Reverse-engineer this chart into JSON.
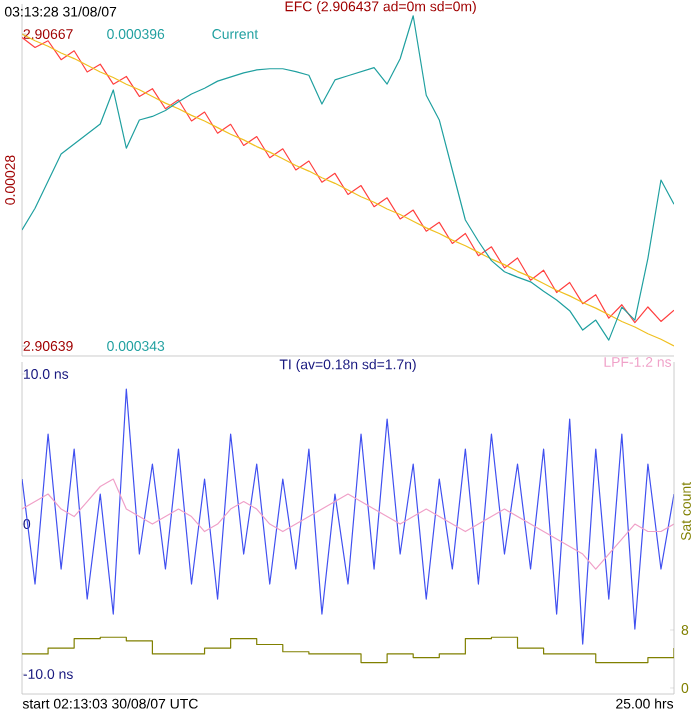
{
  "chart_data": [
    {
      "type": "line",
      "title": "EFC (2.906437 ad=0m sd=0m)",
      "ylabel": "0.00028",
      "annotations": [
        "03:13:28 31/08/07"
      ],
      "categories": [
        null,
        null,
        null,
        null,
        null,
        null,
        null,
        null,
        null,
        null,
        null,
        null,
        null,
        null,
        null,
        null,
        null,
        null,
        null,
        null,
        null,
        null,
        null,
        null,
        null,
        null,
        null,
        null,
        null,
        null,
        null,
        null,
        null,
        null,
        null,
        null,
        null,
        null,
        null,
        null,
        null,
        null,
        null,
        null,
        null,
        null,
        null,
        null,
        null,
        null,
        null
      ],
      "ylim": [
        2.906381,
        2.906697
      ],
      "yticks": [
        2.90639,
        2.90667
      ],
      "y2lim": [
        0.0003413,
        0.0004011
      ],
      "y2ticks": [
        0.000343,
        0.000396
      ],
      "series": [
        {
          "color": "#ff4040",
          "values": [
            2.906667,
            2.906658,
            2.906664,
            2.906647,
            2.906655,
            2.906636,
            2.906643,
            2.906625,
            2.906632,
            2.906614,
            2.906621,
            2.906603,
            2.906611,
            2.906592,
            2.9066,
            2.906581,
            2.906589,
            2.90657,
            2.906578,
            2.906559,
            2.906567,
            2.906548,
            2.906556,
            2.906537,
            2.906545,
            2.906526,
            2.906534,
            2.906515,
            2.906523,
            2.906504,
            2.906512,
            2.906493,
            2.906501,
            2.906482,
            2.906491,
            2.906471,
            2.906479,
            2.90646,
            2.906469,
            2.906449,
            2.906458,
            2.906438,
            2.906447,
            2.906428,
            2.906436,
            2.906415,
            2.906427,
            2.906411,
            2.906425,
            2.906412,
            2.906422
          ]
        },
        {
          "color": "#f0c020",
          "values": [
            2.90667,
            2.906664,
            2.906659,
            2.906653,
            2.906648,
            2.906642,
            2.906636,
            2.906631,
            2.906625,
            2.90662,
            2.906614,
            2.906608,
            2.906603,
            2.906597,
            2.906592,
            2.906586,
            2.90658,
            2.906575,
            2.906569,
            2.906564,
            2.906558,
            2.906552,
            2.906547,
            2.906541,
            2.906536,
            2.90653,
            2.906524,
            2.906519,
            2.906513,
            2.906508,
            2.906502,
            2.906496,
            2.906491,
            2.906485,
            2.90648,
            2.906474,
            2.906468,
            2.906463,
            2.906457,
            2.906452,
            2.906446,
            2.90644,
            2.906435,
            2.906429,
            2.906424,
            2.906418,
            2.906412,
            2.906407,
            2.906401,
            2.906396,
            2.90639
          ]
        },
        {
          "name": "Current",
          "axis": "y2",
          "color": "#20a0a0",
          "values": [
            0.0003627,
            0.0003664,
            0.000371,
            0.0003756,
            0.0003773,
            0.000379,
            0.0003807,
            0.0003865,
            0.0003766,
            0.0003814,
            0.000382,
            0.000383,
            0.0003845,
            0.0003858,
            0.0003868,
            0.000388,
            0.0003887,
            0.0003894,
            0.0003899,
            0.0003901,
            0.0003901,
            0.0003896,
            0.000389,
            0.0003841,
            0.0003882,
            0.0003889,
            0.0003896,
            0.0003903,
            0.0003875,
            0.0003918,
            0.0003991,
            0.0003856,
            0.0003814,
            0.0003729,
            0.0003644,
            0.0003608,
            0.0003575,
            0.0003556,
            0.0003547,
            0.0003539,
            0.0003523,
            0.0003508,
            0.000349,
            0.0003457,
            0.0003474,
            0.000344,
            0.0003496,
            0.0003474,
            0.0003579,
            0.0003712,
            0.0003671
          ]
        }
      ]
    },
    {
      "type": "line",
      "title": "TI (av=0.18n sd=1.7n)",
      "y2label": "Sat count",
      "annotations": [
        "start 02:13:03 30/08/07 UTC",
        "25.00 hrs"
      ],
      "categories": [
        null,
        null,
        null,
        null,
        null,
        null,
        null,
        null,
        null,
        null,
        null,
        null,
        null,
        null,
        null,
        null,
        null,
        null,
        null,
        null,
        null,
        null,
        null,
        null,
        null,
        null,
        null,
        null,
        null,
        null,
        null,
        null,
        null,
        null,
        null,
        null,
        null,
        null,
        null,
        null,
        null,
        null,
        null,
        null,
        null,
        null,
        null,
        null,
        null,
        null,
        null
      ],
      "ylim": [
        -11.33,
        10.8
      ],
      "yticks": [
        {
          "value": 10,
          "label": "10.0 ns"
        },
        0,
        {
          "value": -10,
          "label": "-10.0 ns"
        }
      ],
      "y2lim": [
        -0.83,
        44.97
      ],
      "y2ticks": [
        8,
        0
      ],
      "series": [
        {
          "color": "#4050f0",
          "values": [
            3,
            -4,
            6,
            -3,
            5,
            -5,
            2,
            -6,
            9,
            -2,
            4,
            -3,
            5,
            -4,
            3,
            -5,
            6,
            -2,
            4,
            -4,
            3,
            -3,
            5,
            -6,
            2,
            -4,
            6,
            -3,
            7,
            -2,
            4,
            -5,
            3,
            -3,
            5,
            -4,
            6,
            -2,
            4,
            -3,
            5,
            -6,
            7,
            -8,
            5,
            -5,
            6,
            -7,
            4,
            -3,
            2
          ]
        },
        {
          "name": "LPF-1.2 ns",
          "color": "#f0a0c8",
          "values": [
            1,
            1.5,
            2,
            1,
            0.5,
            1.5,
            2.5,
            3,
            1,
            0.5,
            0,
            0.5,
            1,
            0.5,
            -0.5,
            0,
            1,
            1.5,
            1,
            0,
            -0.5,
            0,
            0.5,
            1,
            1.5,
            2,
            1.5,
            1,
            0.5,
            0,
            0.5,
            1,
            0.5,
            0,
            -0.5,
            0,
            0.5,
            1,
            0.5,
            0,
            -0.5,
            -1,
            -1.5,
            -2,
            -3,
            -2,
            -1,
            0,
            -0.5,
            -0.5,
            0
          ]
        },
        {
          "type": "step",
          "axis": "y2",
          "color": "#808000",
          "values": [
            4.7,
            4.7,
            5.5,
            5.5,
            6.8,
            6.8,
            7,
            7,
            6.5,
            6.5,
            4.7,
            4.7,
            4.7,
            4.7,
            5.5,
            5.5,
            6.8,
            6.8,
            6,
            6,
            5,
            5,
            4.7,
            4.7,
            4.7,
            4.7,
            3.5,
            3.5,
            4.7,
            4.7,
            4.2,
            4.2,
            4.7,
            4.7,
            6.8,
            6.8,
            7,
            7,
            5.5,
            5.5,
            4.7,
            4.7,
            4.7,
            4.7,
            3.5,
            3.5,
            3.5,
            3.5,
            4.2,
            4.2,
            5.5
          ]
        }
      ]
    }
  ]
}
